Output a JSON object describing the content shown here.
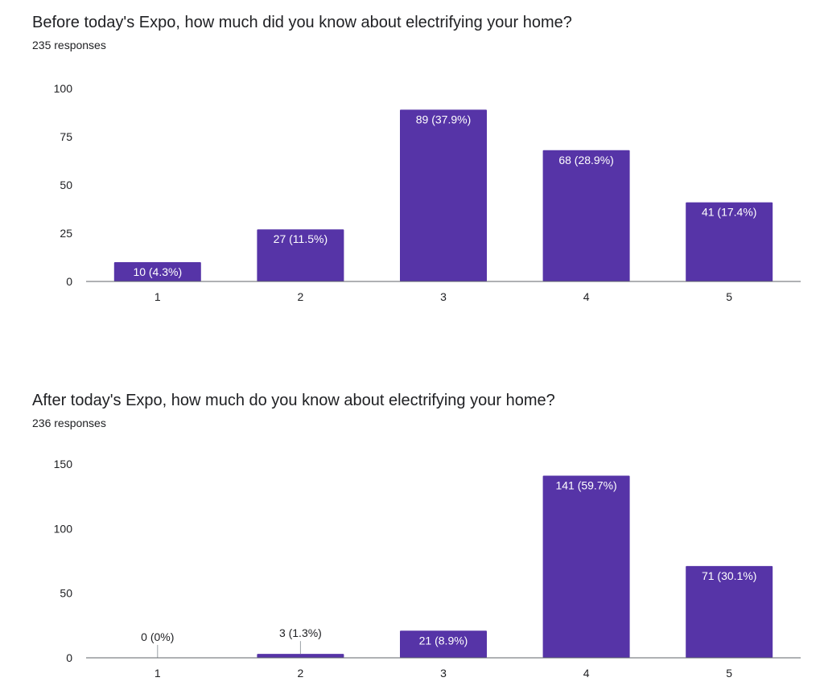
{
  "accent_color": "#5634a7",
  "chart_data": [
    {
      "type": "bar",
      "title": "Before today's Expo, how much did you know about electrifying your home?",
      "subtitle": "235 responses",
      "categories": [
        "1",
        "2",
        "3",
        "4",
        "5"
      ],
      "values": [
        10,
        27,
        89,
        68,
        41
      ],
      "data_labels": [
        "10 (4.3%)",
        "27 (11.5%)",
        "89 (37.9%)",
        "68 (28.9%)",
        "41 (17.4%)"
      ],
      "y_ticks": [
        0,
        25,
        50,
        75,
        100
      ],
      "ylim": [
        0,
        100
      ],
      "xlabel": "",
      "ylabel": "",
      "legend": "none"
    },
    {
      "type": "bar",
      "title": "After today's Expo, how much do you know about electrifying your home?",
      "subtitle": "236 responses",
      "categories": [
        "1",
        "2",
        "3",
        "4",
        "5"
      ],
      "values": [
        0,
        3,
        21,
        141,
        71
      ],
      "data_labels": [
        "0 (0%)",
        "3 (1.3%)",
        "21 (8.9%)",
        "141 (59.7%)",
        "71 (30.1%)"
      ],
      "y_ticks": [
        0,
        50,
        100,
        150
      ],
      "ylim": [
        0,
        150
      ],
      "xlabel": "",
      "ylabel": "",
      "legend": "none"
    }
  ]
}
